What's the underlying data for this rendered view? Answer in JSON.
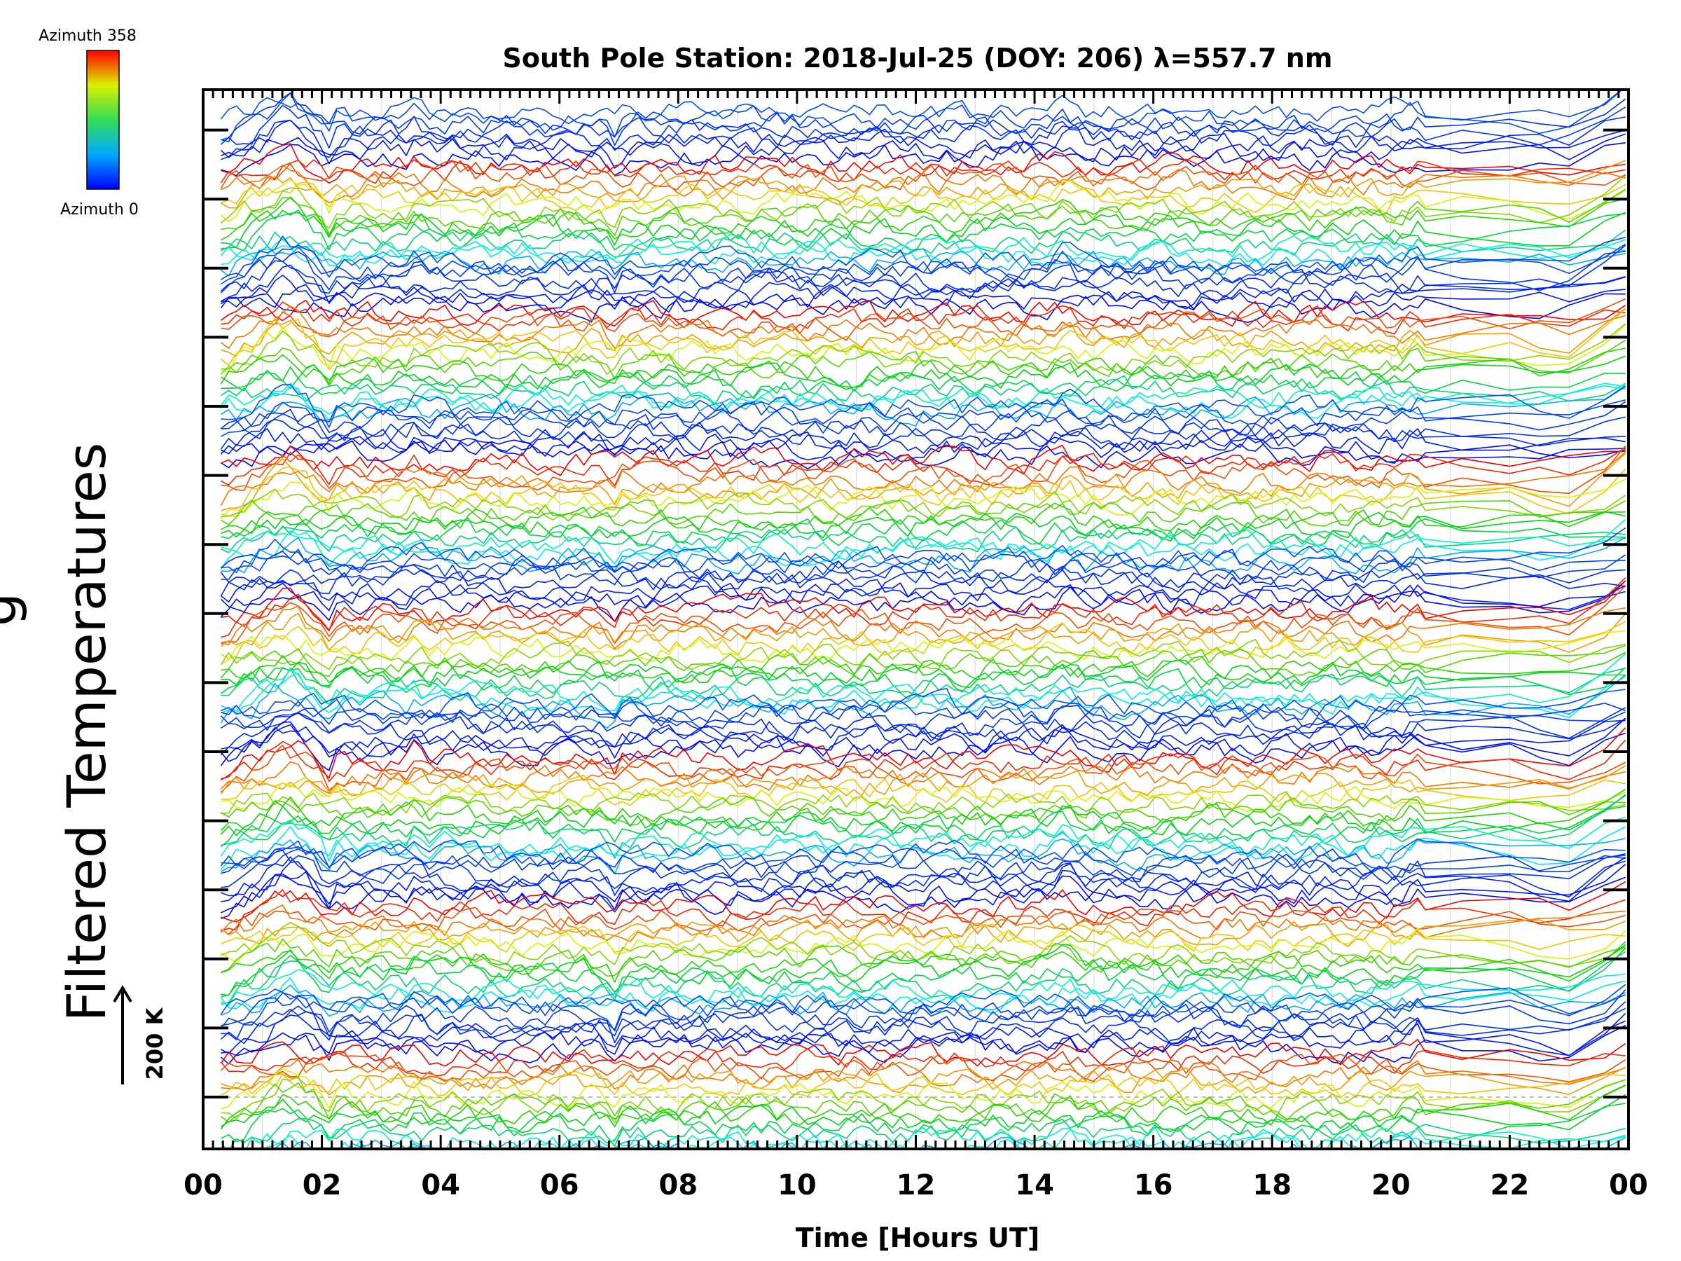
{
  "chart_data": {
    "type": "line",
    "title": "South Pole Station: 2018-Jul-25 (DOY: 206) λ=557.7 nm",
    "xlabel": "Time [Hours UT]",
    "ylabel": "Filtered Temperatures",
    "ylabel_partial": "g",
    "xlim": [
      0,
      24
    ],
    "x_ticks": [
      "00",
      "02",
      "04",
      "06",
      "08",
      "10",
      "12",
      "14",
      "16",
      "18",
      "20",
      "22",
      "00"
    ],
    "y_tick_count": 15,
    "scale_bar_label": "200 K",
    "colorbar": {
      "top_label": "Azimuth 358",
      "bottom_label": "Azimuth 0",
      "min": 0,
      "max": 358
    },
    "series_summary": {
      "description": "Stacked filtered temperature traces colored by azimuth (0 blue to 358 red), offset vertically in groups",
      "groups": 7,
      "traces_per_group": 24,
      "data_gap_hours": [
        20.6,
        22.0
      ]
    }
  }
}
